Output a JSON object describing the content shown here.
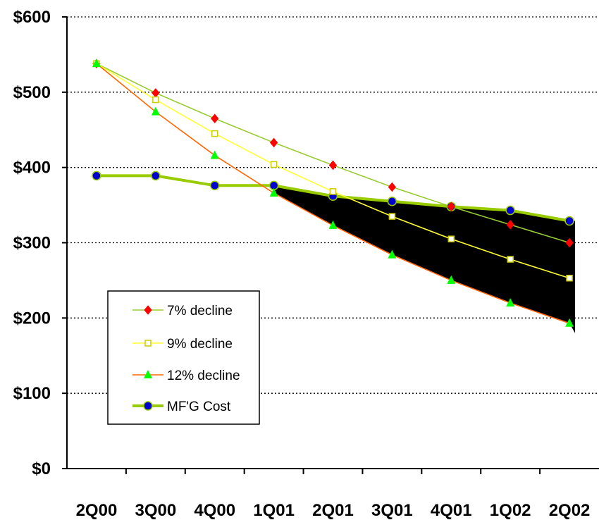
{
  "chart_data": {
    "type": "line",
    "categories": [
      "2Q00",
      "3Q00",
      "4Q00",
      "1Q01",
      "2Q01",
      "3Q01",
      "4Q01",
      "1Q02",
      "2Q02"
    ],
    "ylim": [
      0,
      600
    ],
    "yticks": [
      0,
      100,
      200,
      300,
      400,
      500,
      600
    ],
    "ytick_labels": [
      "$0",
      "$100",
      "$200",
      "$300",
      "$400",
      "$500",
      "$600"
    ],
    "grid": "horizontal dotted",
    "legend_position": "bottom-left inside plot",
    "shaded_region": "black fill between MF'G Cost line and 12% decline line from 1Q01 to 2Q02",
    "series": [
      {
        "name": "7% decline",
        "line_color": "#99cc33",
        "marker": "diamond",
        "marker_color": "#ff0000",
        "values": [
          538,
          499,
          465,
          433,
          403,
          374,
          348,
          324,
          300
        ]
      },
      {
        "name": "9% decline",
        "line_color": "#ffff33",
        "marker": "square",
        "marker_color": "#ffff00",
        "values": [
          538,
          490,
          445,
          404,
          368,
          335,
          305,
          278,
          253
        ]
      },
      {
        "name": "12% decline",
        "line_color": "#ff6600",
        "marker": "triangle",
        "marker_color": "#00ff00",
        "values": [
          538,
          474,
          416,
          366,
          323,
          284,
          250,
          220,
          193
        ]
      },
      {
        "name": "MF'G Cost",
        "line_color": "#99cc00",
        "marker": "circle",
        "marker_color": "#0000cc",
        "values": [
          389,
          389,
          376,
          376,
          362,
          355,
          348,
          343,
          329
        ]
      }
    ]
  }
}
